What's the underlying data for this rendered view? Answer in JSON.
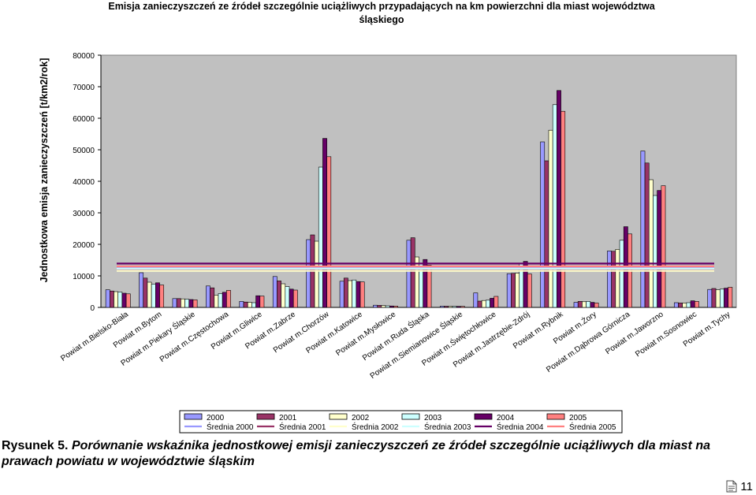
{
  "chart_data": {
    "type": "bar",
    "title": "Emisja zanieczyszczeń ze źródeł szczególnie uciążliwych przypadających na km powierzchni dla miast województwa śląskiego",
    "title_lines": [
      "Emisja zanieczyszczeń ze źródeł szczególnie uciążliwych przypadających na km powierzchni dla miast województwa",
      "śląskiego"
    ],
    "ylabel": "Jednostkowa emisja zanieczyszczeń [t/km2/rok]",
    "xlabel": "",
    "ylim": [
      0,
      80000
    ],
    "yticks": [
      0,
      10000,
      20000,
      30000,
      40000,
      50000,
      60000,
      70000,
      80000
    ],
    "grid": false,
    "plot_background": "#c0c0c0",
    "legend_position": "bottom",
    "categories": [
      "Powiat m.Bielsko-Biała",
      "Powiat m.Bytom",
      "Powiat m.Piekary Śląskie",
      "Powiat m.Częstochowa",
      "Powiat m.Gliwice",
      "Powiat m.Zabrze",
      "Powiat m.Chorzów",
      "Powiat m.Katowice",
      "Powiat m.Mysłowice",
      "Powiat m.Ruda Śląska",
      "Powiat m.Siemianowice Śląskie",
      "Powiat m.Świętochłowice",
      "Powiat m.Jastrzębie-Zdrój",
      "Powiat m.Rybnik",
      "Powiat m.Żory",
      "Powiat m.Dąbrowa Górnicza",
      "Powiat m.Jaworzno",
      "Powiat m.Sosnowiec",
      "Powiat m.Tychy"
    ],
    "series": [
      {
        "name": "2000",
        "color": "#9999ff",
        "values": [
          5600,
          11000,
          2800,
          6800,
          1900,
          9800,
          21500,
          8300,
          700,
          21300,
          400,
          4600,
          10700,
          52500,
          1600,
          17900,
          49600,
          1500,
          5700
        ]
      },
      {
        "name": "2001",
        "color": "#993366",
        "values": [
          5200,
          9300,
          2800,
          6200,
          1700,
          8400,
          23000,
          9300,
          650,
          22100,
          380,
          2000,
          10800,
          46500,
          1900,
          17800,
          45800,
          1400,
          6000
        ]
      },
      {
        "name": "2002",
        "color": "#ffffcc",
        "values": [
          5000,
          8000,
          2700,
          3900,
          1600,
          7500,
          21000,
          8500,
          600,
          16000,
          370,
          2200,
          10900,
          56200,
          1800,
          18400,
          40500,
          1400,
          5600
        ]
      },
      {
        "name": "2003",
        "color": "#ccffff",
        "values": [
          4900,
          7400,
          2600,
          4400,
          1500,
          6600,
          44500,
          8700,
          500,
          13800,
          360,
          2300,
          13900,
          64300,
          1900,
          21300,
          35500,
          1500,
          5800
        ]
      },
      {
        "name": "2004",
        "color": "#660066",
        "values": [
          4500,
          7800,
          2500,
          4800,
          3700,
          5800,
          53600,
          8200,
          450,
          15200,
          340,
          2900,
          14600,
          68800,
          1600,
          25600,
          37100,
          2100,
          6100
        ]
      },
      {
        "name": "2005",
        "color": "#ff8080",
        "values": [
          4300,
          7100,
          2400,
          5400,
          3600,
          5500,
          47800,
          8100,
          420,
          13400,
          330,
          3500,
          10600,
          62200,
          1400,
          23300,
          38600,
          1900,
          6400
        ]
      }
    ],
    "averages": [
      {
        "name": "Średnia 2000",
        "color": "#9999ff",
        "value": 12700
      },
      {
        "name": "Średnia 2001",
        "color": "#993366",
        "value": 12200
      },
      {
        "name": "Średnia 2002",
        "color": "#ffffcc",
        "value": 11600
      },
      {
        "name": "Średnia 2003",
        "color": "#ccffff",
        "value": 12300
      },
      {
        "name": "Średnia 2004",
        "color": "#660066",
        "value": 13900
      },
      {
        "name": "Średnia 2005",
        "color": "#ff8080",
        "value": 13000
      }
    ]
  },
  "caption": {
    "label": "Rysunek 5.",
    "text": "Porównanie wskaźnika jednostkowej emisji zanieczyszczeń ze źródeł szczególnie uciążliwych dla miast na prawach powiatu w województwie śląskim"
  },
  "footer": {
    "page_number": "11",
    "icon": "document-icon"
  }
}
